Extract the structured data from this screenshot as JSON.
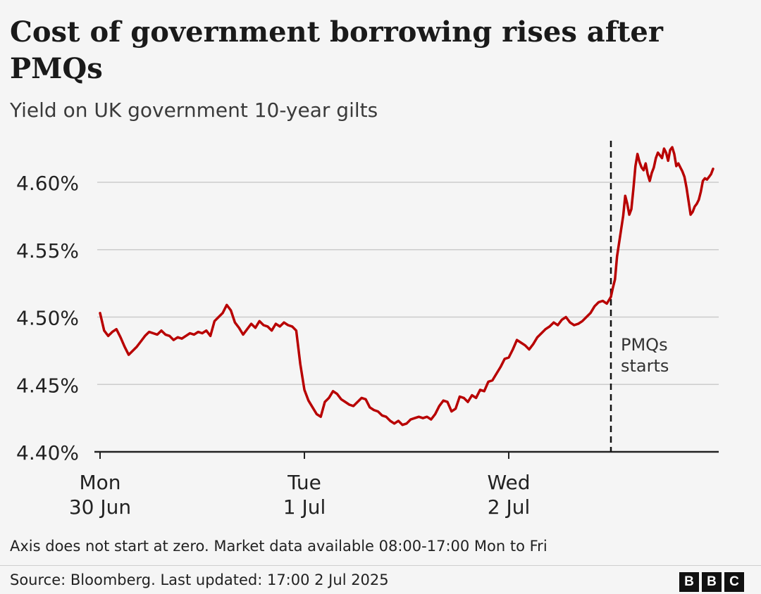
{
  "title": "Cost of government borrowing rises after PMQs",
  "subtitle": "Yield on UK government 10-year gilts",
  "note": "Axis does not start at zero. Market data available 08:00-17:00 Mon to Fri",
  "source": "Source: Bloomberg. Last updated: 17:00 2 Jul 2025",
  "logo": [
    "B",
    "B",
    "C"
  ],
  "colors": {
    "line": "#b80000",
    "grid": "#cccccc",
    "axis": "#222222"
  },
  "chart_data": {
    "type": "line",
    "title": "Cost of government borrowing rises after PMQs",
    "subtitle": "Yield on UK government 10-year gilts",
    "ylim": [
      4.4,
      4.635
    ],
    "y_ticks": [
      4.4,
      4.45,
      4.5,
      4.55,
      4.6
    ],
    "y_tick_labels": [
      "4.40%",
      "4.45%",
      "4.50%",
      "4.55%",
      "4.60%"
    ],
    "x_ticks": [
      {
        "day": 0,
        "line1": "Mon",
        "line2": "30 Jun"
      },
      {
        "day": 1,
        "line1": "Tue",
        "line2": "1 Jul"
      },
      {
        "day": 2,
        "line1": "Wed",
        "line2": "2 Jul"
      }
    ],
    "grid": true,
    "annotation": {
      "day": 2.5,
      "line1": "PMQs",
      "line2": "starts"
    },
    "series": [
      {
        "values": [
          [
            0.0,
            4.503
          ],
          [
            0.02,
            4.49
          ],
          [
            0.04,
            4.486
          ],
          [
            0.06,
            4.489
          ],
          [
            0.08,
            4.491
          ],
          [
            0.1,
            4.485
          ],
          [
            0.12,
            4.478
          ],
          [
            0.14,
            4.472
          ],
          [
            0.16,
            4.475
          ],
          [
            0.18,
            4.478
          ],
          [
            0.2,
            4.482
          ],
          [
            0.22,
            4.486
          ],
          [
            0.24,
            4.489
          ],
          [
            0.26,
            4.488
          ],
          [
            0.28,
            4.487
          ],
          [
            0.3,
            4.49
          ],
          [
            0.32,
            4.487
          ],
          [
            0.34,
            4.486
          ],
          [
            0.36,
            4.483
          ],
          [
            0.38,
            4.485
          ],
          [
            0.4,
            4.484
          ],
          [
            0.42,
            4.486
          ],
          [
            0.44,
            4.488
          ],
          [
            0.46,
            4.487
          ],
          [
            0.48,
            4.489
          ],
          [
            0.5,
            4.488
          ],
          [
            0.52,
            4.49
          ],
          [
            0.54,
            4.486
          ],
          [
            0.56,
            4.497
          ],
          [
            0.58,
            4.5
          ],
          [
            0.6,
            4.503
          ],
          [
            0.62,
            4.509
          ],
          [
            0.64,
            4.505
          ],
          [
            0.66,
            4.496
          ],
          [
            0.68,
            4.492
          ],
          [
            0.7,
            4.487
          ],
          [
            0.72,
            4.491
          ],
          [
            0.74,
            4.495
          ],
          [
            0.76,
            4.492
          ],
          [
            0.78,
            4.497
          ],
          [
            0.8,
            4.494
          ],
          [
            0.82,
            4.493
          ],
          [
            0.84,
            4.49
          ],
          [
            0.86,
            4.495
          ],
          [
            0.88,
            4.493
          ],
          [
            0.9,
            4.496
          ],
          [
            0.92,
            4.494
          ],
          [
            0.94,
            4.493
          ],
          [
            0.96,
            4.49
          ],
          [
            0.98,
            4.465
          ],
          [
            1.0,
            4.446
          ],
          [
            1.02,
            4.438
          ],
          [
            1.04,
            4.433
          ],
          [
            1.06,
            4.428
          ],
          [
            1.08,
            4.426
          ],
          [
            1.1,
            4.437
          ],
          [
            1.12,
            4.44
          ],
          [
            1.14,
            4.445
          ],
          [
            1.16,
            4.443
          ],
          [
            1.18,
            4.439
          ],
          [
            1.2,
            4.437
          ],
          [
            1.22,
            4.435
          ],
          [
            1.24,
            4.434
          ],
          [
            1.26,
            4.437
          ],
          [
            1.28,
            4.44
          ],
          [
            1.3,
            4.439
          ],
          [
            1.32,
            4.433
          ],
          [
            1.34,
            4.431
          ],
          [
            1.36,
            4.43
          ],
          [
            1.38,
            4.427
          ],
          [
            1.4,
            4.426
          ],
          [
            1.42,
            4.423
          ],
          [
            1.44,
            4.421
          ],
          [
            1.46,
            4.423
          ],
          [
            1.48,
            4.42
          ],
          [
            1.5,
            4.421
          ],
          [
            1.52,
            4.424
          ],
          [
            1.54,
            4.425
          ],
          [
            1.56,
            4.426
          ],
          [
            1.58,
            4.425
          ],
          [
            1.6,
            4.426
          ],
          [
            1.62,
            4.424
          ],
          [
            1.64,
            4.428
          ],
          [
            1.66,
            4.434
          ],
          [
            1.68,
            4.438
          ],
          [
            1.7,
            4.437
          ],
          [
            1.72,
            4.43
          ],
          [
            1.74,
            4.432
          ],
          [
            1.76,
            4.441
          ],
          [
            1.78,
            4.44
          ],
          [
            1.8,
            4.437
          ],
          [
            1.82,
            4.442
          ],
          [
            1.84,
            4.44
          ],
          [
            1.86,
            4.446
          ],
          [
            1.88,
            4.445
          ],
          [
            1.9,
            4.452
          ],
          [
            1.92,
            4.453
          ],
          [
            1.94,
            4.458
          ],
          [
            1.96,
            4.463
          ],
          [
            1.98,
            4.469
          ],
          [
            2.0,
            4.47
          ],
          [
            2.02,
            4.476
          ],
          [
            2.04,
            4.483
          ],
          [
            2.06,
            4.481
          ],
          [
            2.08,
            4.479
          ],
          [
            2.1,
            4.476
          ],
          [
            2.12,
            4.48
          ],
          [
            2.14,
            4.485
          ],
          [
            2.16,
            4.488
          ],
          [
            2.18,
            4.491
          ],
          [
            2.2,
            4.493
          ],
          [
            2.22,
            4.496
          ],
          [
            2.24,
            4.494
          ],
          [
            2.26,
            4.498
          ],
          [
            2.28,
            4.5
          ],
          [
            2.3,
            4.496
          ],
          [
            2.32,
            4.494
          ],
          [
            2.34,
            4.495
          ],
          [
            2.36,
            4.497
          ],
          [
            2.38,
            4.5
          ],
          [
            2.4,
            4.503
          ],
          [
            2.42,
            4.508
          ],
          [
            2.44,
            4.511
          ],
          [
            2.46,
            4.512
          ],
          [
            2.48,
            4.51
          ],
          [
            2.5,
            4.515
          ],
          [
            2.51,
            4.522
          ],
          [
            2.52,
            4.528
          ],
          [
            2.53,
            4.545
          ],
          [
            2.54,
            4.555
          ],
          [
            2.55,
            4.565
          ],
          [
            2.56,
            4.575
          ],
          [
            2.57,
            4.59
          ],
          [
            2.58,
            4.584
          ],
          [
            2.59,
            4.576
          ],
          [
            2.6,
            4.58
          ],
          [
            2.61,
            4.595
          ],
          [
            2.62,
            4.612
          ],
          [
            2.63,
            4.621
          ],
          [
            2.64,
            4.615
          ],
          [
            2.65,
            4.611
          ],
          [
            2.66,
            4.609
          ],
          [
            2.67,
            4.614
          ],
          [
            2.68,
            4.606
          ],
          [
            2.69,
            4.601
          ],
          [
            2.7,
            4.607
          ],
          [
            2.71,
            4.611
          ],
          [
            2.72,
            4.618
          ],
          [
            2.73,
            4.622
          ],
          [
            2.74,
            4.62
          ],
          [
            2.75,
            4.618
          ],
          [
            2.76,
            4.625
          ],
          [
            2.77,
            4.622
          ],
          [
            2.78,
            4.616
          ],
          [
            2.79,
            4.624
          ],
          [
            2.8,
            4.626
          ],
          [
            2.81,
            4.621
          ],
          [
            2.82,
            4.612
          ],
          [
            2.83,
            4.614
          ],
          [
            2.84,
            4.611
          ],
          [
            2.85,
            4.608
          ],
          [
            2.86,
            4.604
          ],
          [
            2.87,
            4.596
          ],
          [
            2.88,
            4.586
          ],
          [
            2.89,
            4.576
          ],
          [
            2.9,
            4.578
          ],
          [
            2.91,
            4.582
          ],
          [
            2.92,
            4.584
          ],
          [
            2.93,
            4.587
          ],
          [
            2.94,
            4.593
          ],
          [
            2.95,
            4.601
          ],
          [
            2.96,
            4.603
          ],
          [
            2.97,
            4.602
          ],
          [
            2.98,
            4.604
          ],
          [
            2.99,
            4.606
          ],
          [
            3.0,
            4.61
          ]
        ]
      }
    ]
  }
}
